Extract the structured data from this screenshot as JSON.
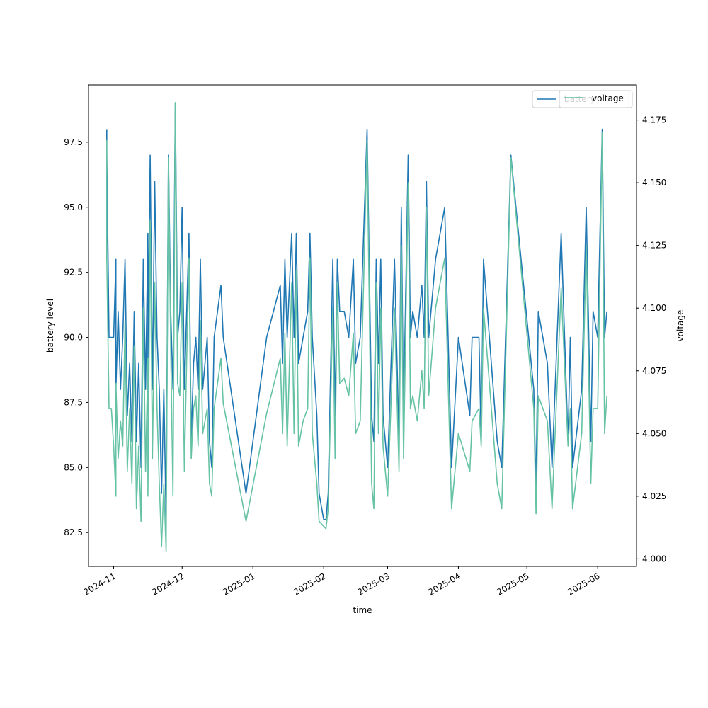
{
  "chart_data": {
    "type": "line",
    "xlabel": "time",
    "y_left_label": "battery level",
    "y_right_label": "voltage",
    "x_range": [
      "2024-10-21",
      "2025-06-18"
    ],
    "y_left_range": [
      81.2,
      99.7
    ],
    "y_right_range": [
      3.997,
      4.189
    ],
    "x_ticks": [
      "2024-11-01",
      "2024-12-01",
      "2025-01-01",
      "2025-02-01",
      "2025-03-01",
      "2025-04-01",
      "2025-05-01",
      "2025-06-01"
    ],
    "x_tick_labels": [
      "2024-11",
      "2024-12",
      "2025-01",
      "2025-02",
      "2025-03",
      "2025-04",
      "2025-05",
      "2025-06"
    ],
    "y_left_ticks": [
      "82.5",
      "85.0",
      "87.5",
      "90.0",
      "92.5",
      "95.0",
      "97.5"
    ],
    "y_right_ticks": [
      "4.000",
      "4.025",
      "4.050",
      "4.075",
      "4.100",
      "4.125",
      "4.150",
      "4.175"
    ],
    "grid": false,
    "legend_position": "top-right",
    "series": [
      {
        "name": "battery",
        "axis": "left",
        "color": "#1f77b4",
        "points": [
          [
            "2024-10-29",
            98
          ],
          [
            "2024-10-29",
            97
          ],
          [
            "2024-10-30",
            90
          ],
          [
            "2024-10-31",
            90
          ],
          [
            "2024-11-01",
            90
          ],
          [
            "2024-11-02",
            93
          ],
          [
            "2024-11-02",
            88
          ],
          [
            "2024-11-03",
            91
          ],
          [
            "2024-11-04",
            88
          ],
          [
            "2024-11-05",
            90
          ],
          [
            "2024-11-06",
            93
          ],
          [
            "2024-11-07",
            87
          ],
          [
            "2024-11-08",
            89
          ],
          [
            "2024-11-09",
            86
          ],
          [
            "2024-11-10",
            91
          ],
          [
            "2024-11-11",
            86
          ],
          [
            "2024-11-12",
            89
          ],
          [
            "2024-11-13",
            85
          ],
          [
            "2024-11-14",
            93
          ],
          [
            "2024-11-15",
            88
          ],
          [
            "2024-11-16",
            94
          ],
          [
            "2024-11-16",
            89
          ],
          [
            "2024-11-17",
            97
          ],
          [
            "2024-11-18",
            88
          ],
          [
            "2024-11-19",
            96
          ],
          [
            "2024-11-20",
            90
          ],
          [
            "2024-11-21",
            88
          ],
          [
            "2024-11-22",
            84
          ],
          [
            "2024-11-23",
            88
          ],
          [
            "2024-11-24",
            83
          ],
          [
            "2024-11-25",
            97
          ],
          [
            "2024-11-26",
            91
          ],
          [
            "2024-11-27",
            88
          ],
          [
            "2024-11-28",
            99
          ],
          [
            "2024-11-29",
            90
          ],
          [
            "2024-11-30",
            91
          ],
          [
            "2024-12-01",
            95
          ],
          [
            "2024-12-02",
            88
          ],
          [
            "2024-12-03",
            91
          ],
          [
            "2024-12-04",
            94
          ],
          [
            "2024-12-05",
            86
          ],
          [
            "2024-12-06",
            89
          ],
          [
            "2024-12-07",
            90
          ],
          [
            "2024-12-08",
            88
          ],
          [
            "2024-12-09",
            93
          ],
          [
            "2024-12-10",
            88
          ],
          [
            "2024-12-11",
            89
          ],
          [
            "2024-12-12",
            90
          ],
          [
            "2024-12-13",
            86
          ],
          [
            "2024-12-14",
            85
          ],
          [
            "2024-12-15",
            90
          ],
          [
            "2024-12-18",
            92
          ],
          [
            "2024-12-19",
            90
          ],
          [
            "2024-12-29",
            84
          ],
          [
            "2025-01-07",
            90
          ],
          [
            "2025-01-13",
            92
          ],
          [
            "2025-01-14",
            89
          ],
          [
            "2025-01-15",
            93
          ],
          [
            "2025-01-16",
            90
          ],
          [
            "2025-01-18",
            94
          ],
          [
            "2025-01-19",
            90
          ],
          [
            "2025-01-20",
            94
          ],
          [
            "2025-01-21",
            89
          ],
          [
            "2025-01-23",
            90
          ],
          [
            "2025-01-25",
            91
          ],
          [
            "2025-01-26",
            94
          ],
          [
            "2025-01-27",
            90
          ],
          [
            "2025-01-29",
            87
          ],
          [
            "2025-01-30",
            84
          ],
          [
            "2025-02-01",
            83
          ],
          [
            "2025-02-02",
            83
          ],
          [
            "2025-02-03",
            84
          ],
          [
            "2025-02-05",
            93
          ],
          [
            "2025-02-06",
            87
          ],
          [
            "2025-02-07",
            93
          ],
          [
            "2025-02-08",
            91
          ],
          [
            "2025-02-10",
            91
          ],
          [
            "2025-02-12",
            90
          ],
          [
            "2025-02-14",
            93
          ],
          [
            "2025-02-15",
            89
          ],
          [
            "2025-02-17",
            90
          ],
          [
            "2025-02-20",
            98
          ],
          [
            "2025-02-22",
            87
          ],
          [
            "2025-02-23",
            86
          ],
          [
            "2025-02-24",
            93
          ],
          [
            "2025-02-25",
            89
          ],
          [
            "2025-02-26",
            93
          ],
          [
            "2025-02-27",
            87
          ],
          [
            "2025-03-01",
            85
          ],
          [
            "2025-03-04",
            93
          ],
          [
            "2025-03-06",
            86
          ],
          [
            "2025-03-07",
            95
          ],
          [
            "2025-03-08",
            87
          ],
          [
            "2025-03-10",
            97
          ],
          [
            "2025-03-11",
            90
          ],
          [
            "2025-03-12",
            91
          ],
          [
            "2025-03-14",
            90
          ],
          [
            "2025-03-16",
            92
          ],
          [
            "2025-03-17",
            90
          ],
          [
            "2025-03-18",
            96
          ],
          [
            "2025-03-19",
            90
          ],
          [
            "2025-03-22",
            93
          ],
          [
            "2025-03-26",
            95
          ],
          [
            "2025-03-29",
            85
          ],
          [
            "2025-04-01",
            90
          ],
          [
            "2025-04-06",
            87
          ],
          [
            "2025-04-07",
            90
          ],
          [
            "2025-04-10",
            90
          ],
          [
            "2025-04-11",
            86
          ],
          [
            "2025-04-12",
            93
          ],
          [
            "2025-04-18",
            86
          ],
          [
            "2025-04-20",
            85
          ],
          [
            "2025-04-22",
            91
          ],
          [
            "2025-04-24",
            97
          ],
          [
            "2025-05-04",
            88
          ],
          [
            "2025-05-05",
            84
          ],
          [
            "2025-05-06",
            91
          ],
          [
            "2025-05-10",
            89
          ],
          [
            "2025-05-12",
            85
          ],
          [
            "2025-05-16",
            94
          ],
          [
            "2025-05-19",
            86
          ],
          [
            "2025-05-20",
            90
          ],
          [
            "2025-05-21",
            85
          ],
          [
            "2025-05-25",
            88
          ],
          [
            "2025-05-27",
            95
          ],
          [
            "2025-05-29",
            86
          ],
          [
            "2025-05-30",
            91
          ],
          [
            "2025-06-01",
            90
          ],
          [
            "2025-06-03",
            98
          ],
          [
            "2025-06-04",
            90
          ],
          [
            "2025-06-05",
            91
          ]
        ]
      },
      {
        "name": "voltage",
        "axis": "right",
        "color": "#66c2a5",
        "points": [
          [
            "2024-10-29",
            4.167
          ],
          [
            "2024-10-29",
            4.12
          ],
          [
            "2024-10-30",
            4.06
          ],
          [
            "2024-10-31",
            4.06
          ],
          [
            "2024-11-01",
            4.045
          ],
          [
            "2024-11-02",
            4.025
          ],
          [
            "2024-11-02",
            4.07
          ],
          [
            "2024-11-03",
            4.04
          ],
          [
            "2024-11-04",
            4.055
          ],
          [
            "2024-11-05",
            4.045
          ],
          [
            "2024-11-06",
            4.095
          ],
          [
            "2024-11-07",
            4.035
          ],
          [
            "2024-11-08",
            4.06
          ],
          [
            "2024-11-09",
            4.03
          ],
          [
            "2024-11-10",
            4.085
          ],
          [
            "2024-11-11",
            4.02
          ],
          [
            "2024-11-12",
            4.045
          ],
          [
            "2024-11-13",
            4.015
          ],
          [
            "2024-11-14",
            4.1
          ],
          [
            "2024-11-15",
            4.035
          ],
          [
            "2024-11-16",
            4.08
          ],
          [
            "2024-11-16",
            4.025
          ],
          [
            "2024-11-17",
            4.135
          ],
          [
            "2024-11-18",
            4.04
          ],
          [
            "2024-11-19",
            4.11
          ],
          [
            "2024-11-20",
            4.06
          ],
          [
            "2024-11-21",
            4.03
          ],
          [
            "2024-11-22",
            4.005
          ],
          [
            "2024-11-23",
            4.03
          ],
          [
            "2024-11-24",
            4.003
          ],
          [
            "2024-11-25",
            4.16
          ],
          [
            "2024-11-26",
            4.085
          ],
          [
            "2024-11-27",
            4.025
          ],
          [
            "2024-11-28",
            4.182
          ],
          [
            "2024-11-29",
            4.07
          ],
          [
            "2024-11-30",
            4.065
          ],
          [
            "2024-12-01",
            4.11
          ],
          [
            "2024-12-02",
            4.035
          ],
          [
            "2024-12-03",
            4.08
          ],
          [
            "2024-12-04",
            4.12
          ],
          [
            "2024-12-05",
            4.04
          ],
          [
            "2024-12-06",
            4.06
          ],
          [
            "2024-12-07",
            4.065
          ],
          [
            "2024-12-08",
            4.045
          ],
          [
            "2024-12-09",
            4.095
          ],
          [
            "2024-12-10",
            4.05
          ],
          [
            "2024-12-11",
            4.055
          ],
          [
            "2024-12-12",
            4.06
          ],
          [
            "2024-12-13",
            4.03
          ],
          [
            "2024-12-14",
            4.025
          ],
          [
            "2024-12-15",
            4.06
          ],
          [
            "2024-12-18",
            4.08
          ],
          [
            "2024-12-19",
            4.062
          ],
          [
            "2024-12-29",
            4.015
          ],
          [
            "2025-01-07",
            4.058
          ],
          [
            "2025-01-13",
            4.08
          ],
          [
            "2025-01-14",
            4.05
          ],
          [
            "2025-01-15",
            4.09
          ],
          [
            "2025-01-16",
            4.045
          ],
          [
            "2025-01-18",
            4.11
          ],
          [
            "2025-01-19",
            4.05
          ],
          [
            "2025-01-20",
            4.115
          ],
          [
            "2025-01-21",
            4.045
          ],
          [
            "2025-01-23",
            4.055
          ],
          [
            "2025-01-25",
            4.06
          ],
          [
            "2025-01-26",
            4.12
          ],
          [
            "2025-01-27",
            4.05
          ],
          [
            "2025-01-29",
            4.03
          ],
          [
            "2025-01-30",
            4.015
          ],
          [
            "2025-02-01",
            4.013
          ],
          [
            "2025-02-02",
            4.012
          ],
          [
            "2025-02-03",
            4.02
          ],
          [
            "2025-02-05",
            4.1
          ],
          [
            "2025-02-06",
            4.04
          ],
          [
            "2025-02-07",
            4.11
          ],
          [
            "2025-02-08",
            4.07
          ],
          [
            "2025-02-10",
            4.072
          ],
          [
            "2025-02-12",
            4.065
          ],
          [
            "2025-02-14",
            4.09
          ],
          [
            "2025-02-15",
            4.05
          ],
          [
            "2025-02-17",
            4.055
          ],
          [
            "2025-02-20",
            4.167
          ],
          [
            "2025-02-22",
            4.03
          ],
          [
            "2025-02-23",
            4.02
          ],
          [
            "2025-02-24",
            4.11
          ],
          [
            "2025-02-25",
            4.05
          ],
          [
            "2025-02-26",
            4.1
          ],
          [
            "2025-02-27",
            4.045
          ],
          [
            "2025-03-01",
            4.025
          ],
          [
            "2025-03-04",
            4.1
          ],
          [
            "2025-03-06",
            4.035
          ],
          [
            "2025-03-07",
            4.125
          ],
          [
            "2025-03-08",
            4.04
          ],
          [
            "2025-03-10",
            4.15
          ],
          [
            "2025-03-11",
            4.06
          ],
          [
            "2025-03-12",
            4.065
          ],
          [
            "2025-03-14",
            4.055
          ],
          [
            "2025-03-16",
            4.075
          ],
          [
            "2025-03-17",
            4.06
          ],
          [
            "2025-03-18",
            4.14
          ],
          [
            "2025-03-19",
            4.065
          ],
          [
            "2025-03-22",
            4.1
          ],
          [
            "2025-03-26",
            4.12
          ],
          [
            "2025-03-29",
            4.02
          ],
          [
            "2025-04-01",
            4.05
          ],
          [
            "2025-04-06",
            4.035
          ],
          [
            "2025-04-07",
            4.055
          ],
          [
            "2025-04-10",
            4.06
          ],
          [
            "2025-04-11",
            4.045
          ],
          [
            "2025-04-12",
            4.1
          ],
          [
            "2025-04-18",
            4.03
          ],
          [
            "2025-04-20",
            4.02
          ],
          [
            "2025-04-22",
            4.09
          ],
          [
            "2025-04-24",
            4.16
          ],
          [
            "2025-05-04",
            4.06
          ],
          [
            "2025-05-05",
            4.018
          ],
          [
            "2025-05-06",
            4.065
          ],
          [
            "2025-05-10",
            4.055
          ],
          [
            "2025-05-12",
            4.02
          ],
          [
            "2025-05-16",
            4.108
          ],
          [
            "2025-05-19",
            4.045
          ],
          [
            "2025-05-20",
            4.06
          ],
          [
            "2025-05-21",
            4.02
          ],
          [
            "2025-05-25",
            4.05
          ],
          [
            "2025-05-27",
            4.125
          ],
          [
            "2025-05-29",
            4.03
          ],
          [
            "2025-05-30",
            4.06
          ],
          [
            "2025-06-01",
            4.06
          ],
          [
            "2025-06-03",
            4.17
          ],
          [
            "2025-06-04",
            4.05
          ],
          [
            "2025-06-05",
            4.065
          ]
        ]
      }
    ]
  }
}
